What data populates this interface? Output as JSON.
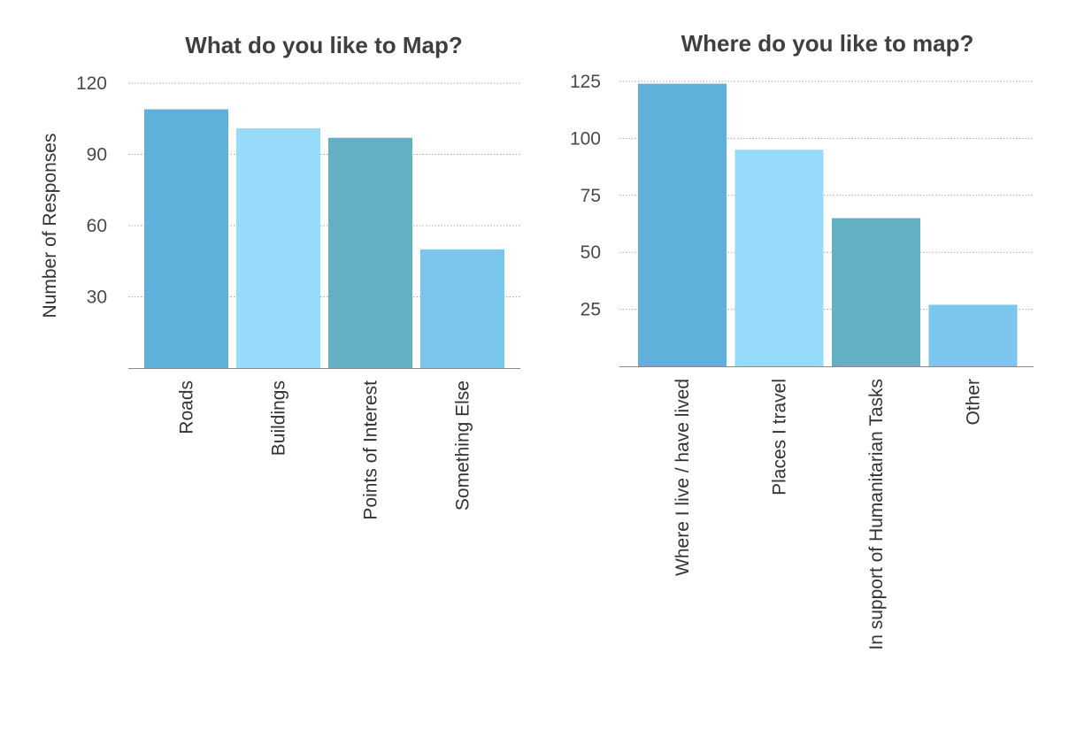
{
  "chart_data": [
    {
      "type": "bar",
      "title": "What do you like to Map?",
      "ylabel": "Number of Responses",
      "xlabel": "",
      "categories": [
        "Roads",
        "Buildings",
        "Points of Interest",
        "Something Else"
      ],
      "values": [
        109,
        101,
        97,
        50
      ],
      "ylim": [
        0,
        120
      ],
      "yticks": [
        30,
        60,
        90,
        120
      ],
      "colors": [
        "#5fb0da",
        "#97dbfb",
        "#63afc4",
        "#7bc6ec"
      ],
      "grid": true
    },
    {
      "type": "bar",
      "title": "Where do you like to map?",
      "ylabel": "",
      "xlabel": "",
      "categories": [
        "Where I live / have lived",
        "Places I travel",
        "In support of Humanitarian Tasks",
        "Other"
      ],
      "values": [
        124,
        95,
        65,
        27
      ],
      "ylim": [
        0,
        125
      ],
      "yticks": [
        25,
        50,
        75,
        100,
        125
      ],
      "colors": [
        "#5fb0da",
        "#97dbfb",
        "#63afc4",
        "#7bc6ec"
      ],
      "grid": true
    }
  ]
}
